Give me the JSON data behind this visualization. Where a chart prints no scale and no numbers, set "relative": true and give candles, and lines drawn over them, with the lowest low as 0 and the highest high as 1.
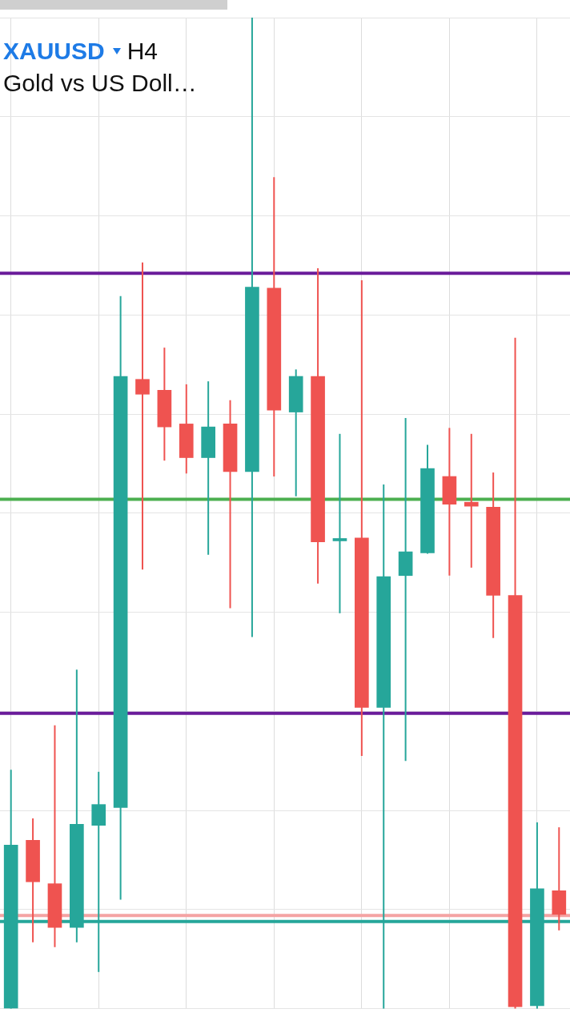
{
  "chart_data": {
    "type": "candlestick",
    "title": "XAUUSD",
    "subtitle": "Gold vs US Doll…",
    "annotations": [
      "H4"
    ],
    "relative": true,
    "grid": true,
    "legend": false,
    "categories": [
      null,
      null,
      null,
      null,
      null,
      null,
      null,
      null,
      null,
      null,
      null,
      null,
      null,
      null,
      null,
      null,
      null,
      null,
      null,
      null,
      null,
      null,
      null,
      null,
      null,
      null
    ],
    "series": [
      {
        "colors": [
          "#26a69a",
          "#ef5350",
          "#ef5350",
          "#26a69a",
          "#26a69a",
          "#26a69a",
          "#ef5350",
          "#ef5350",
          "#ef5350",
          "#26a69a",
          "#ef5350",
          "#26a69a",
          "#ef5350",
          "#26a69a",
          "#ef5350",
          "#26a69a",
          "#ef5350",
          "#26a69a",
          "#26a69a",
          "#26a69a",
          "#ef5350",
          "#ef5350",
          "#ef5350",
          "#ef5350",
          "#26a69a",
          "#ef5350"
        ],
        "ohlc": [
          [
            0,
            0.241,
            0,
            0.165
          ],
          [
            0.17,
            0.192,
            0.067,
            0.128
          ],
          [
            0.126,
            0.286,
            0.062,
            0.082
          ],
          [
            0.082,
            0.342,
            0.067,
            0.186
          ],
          [
            0.185,
            0.239,
            0.037,
            0.206
          ],
          [
            0.203,
            0.719,
            0.11,
            0.638
          ],
          [
            0.635,
            0.753,
            0.443,
            0.62
          ],
          [
            0.624,
            0.667,
            0.553,
            0.587
          ],
          [
            0.59,
            0.63,
            0.54,
            0.556
          ],
          [
            0.556,
            0.633,
            0.458,
            0.587
          ],
          [
            0.59,
            0.614,
            0.404,
            0.542
          ],
          [
            0.542,
            1,
            0.375,
            0.728
          ],
          [
            0.727,
            0.839,
            0.537,
            0.604
          ],
          [
            0.602,
            0.645,
            0.517,
            0.638
          ],
          [
            0.638,
            0.747,
            0.429,
            0.471
          ],
          [
            0.472,
            0.58,
            0.399,
            0.474
          ],
          [
            0.475,
            0.735,
            0.255,
            0.304
          ],
          [
            0.304,
            0.529,
            0,
            0.436
          ],
          [
            0.437,
            0.596,
            0.25,
            0.461
          ],
          [
            0.46,
            0.569,
            0.459,
            0.545
          ],
          [
            0.537,
            0.586,
            0.437,
            0.509
          ],
          [
            0.511,
            0.58,
            0.445,
            0.507
          ],
          [
            0.506,
            0.541,
            0.374,
            0.417
          ],
          [
            0.417,
            0.677,
            0,
            0.002
          ],
          [
            0.003,
            0.188,
            0,
            0.121
          ],
          [
            0.119,
            0.183,
            0.079,
            0.095
          ]
        ]
      }
    ],
    "ref_lines": [
      {
        "axis": "y",
        "value": 0.742,
        "color": "#6a1b9a"
      },
      {
        "axis": "y",
        "value": 0.514,
        "color": "#4caf50"
      },
      {
        "axis": "y",
        "value": 0.298,
        "color": "#6a1b9a"
      },
      {
        "axis": "y",
        "value": 0.094,
        "color": "#f4a3a3"
      },
      {
        "axis": "y",
        "value": 0.088,
        "color": "#26a69a"
      }
    ]
  }
}
